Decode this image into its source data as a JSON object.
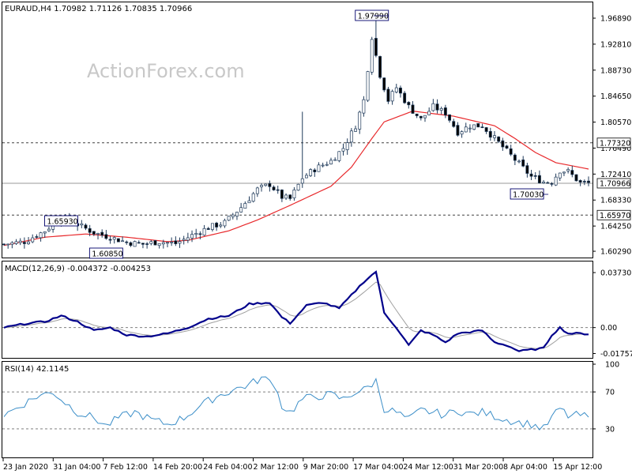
{
  "chart_data": [
    {
      "type": "candlestick",
      "header": "EURAUD,H4 1.70982 1.71126 1.70835 1.70966",
      "watermark": "ActionForex.com",
      "y_range": [
        1.598,
        1.99
      ],
      "y_ticks": [
        "1.96890",
        "1.92810",
        "1.88730",
        "1.84650",
        "1.80570",
        "1.76490",
        "1.72410",
        "1.68330",
        "1.64250",
        "1.60290"
      ],
      "levels": [
        {
          "value": 1.7732,
          "label": "1.77320",
          "style": "dashed"
        },
        {
          "value": 1.70966,
          "label": "1.70966",
          "style": "solid-current"
        },
        {
          "value": 1.6597,
          "label": "1.65970",
          "style": "dashed"
        }
      ],
      "annotations": [
        {
          "label": "1.65930",
          "bar": 14
        },
        {
          "label": "1.60850",
          "bar": 25
        },
        {
          "label": "1.97990",
          "bar": 90
        },
        {
          "label": "1.70030",
          "bar": 132
        }
      ],
      "close_anchors": [
        [
          0,
          1.614
        ],
        [
          5,
          1.618
        ],
        [
          10,
          1.635
        ],
        [
          14,
          1.656
        ],
        [
          18,
          1.645
        ],
        [
          22,
          1.632
        ],
        [
          26,
          1.625
        ],
        [
          30,
          1.617
        ],
        [
          34,
          1.614
        ],
        [
          38,
          1.618
        ],
        [
          42,
          1.615
        ],
        [
          46,
          1.628
        ],
        [
          50,
          1.64
        ],
        [
          54,
          1.648
        ],
        [
          58,
          1.672
        ],
        [
          62,
          1.7
        ],
        [
          65,
          1.708
        ],
        [
          68,
          1.688
        ],
        [
          70,
          1.685
        ],
        [
          73,
          1.718
        ],
        [
          76,
          1.732
        ],
        [
          80,
          1.745
        ],
        [
          83,
          1.765
        ],
        [
          86,
          1.8
        ],
        [
          88,
          1.84
        ],
        [
          90,
          1.94
        ],
        [
          92,
          1.88
        ],
        [
          94,
          1.84
        ],
        [
          96,
          1.86
        ],
        [
          99,
          1.83
        ],
        [
          102,
          1.81
        ],
        [
          105,
          1.83
        ],
        [
          108,
          1.82
        ],
        [
          111,
          1.79
        ],
        [
          114,
          1.8
        ],
        [
          117,
          1.8
        ],
        [
          120,
          1.78
        ],
        [
          123,
          1.76
        ],
        [
          126,
          1.74
        ],
        [
          129,
          1.72
        ],
        [
          132,
          1.712
        ],
        [
          134,
          1.712
        ],
        [
          136,
          1.73
        ],
        [
          138,
          1.728
        ],
        [
          141,
          1.71
        ],
        [
          143,
          1.71
        ]
      ],
      "ma_anchors": [
        [
          0,
          1.612
        ],
        [
          10,
          1.625
        ],
        [
          20,
          1.63
        ],
        [
          30,
          1.625
        ],
        [
          40,
          1.618
        ],
        [
          45,
          1.62
        ],
        [
          55,
          1.635
        ],
        [
          62,
          1.652
        ],
        [
          70,
          1.675
        ],
        [
          80,
          1.705
        ],
        [
          85,
          1.735
        ],
        [
          90,
          1.78
        ],
        [
          93,
          1.806
        ],
        [
          100,
          1.823
        ],
        [
          110,
          1.815
        ],
        [
          120,
          1.8
        ],
        [
          125,
          1.78
        ],
        [
          130,
          1.758
        ],
        [
          135,
          1.742
        ],
        [
          143,
          1.732
        ]
      ],
      "spikes": [
        {
          "bar": 73,
          "high": 1.822
        },
        {
          "bar": 91,
          "high": 1.9799
        }
      ]
    },
    {
      "type": "line",
      "header": "MACD(12,26,9) -0.004372 -0.004253",
      "y_range": [
        -0.02,
        0.04
      ],
      "y_ticks": [
        "0.037301",
        "0.00",
        "-0.017577"
      ],
      "series": [
        {
          "name": "MACD",
          "anchors": [
            [
              0,
              0.0
            ],
            [
              6,
              0.003
            ],
            [
              10,
              0.004
            ],
            [
              14,
              0.008
            ],
            [
              18,
              0.004
            ],
            [
              22,
              -0.002
            ],
            [
              26,
              0.0
            ],
            [
              30,
              -0.005
            ],
            [
              35,
              -0.006
            ],
            [
              40,
              -0.004
            ],
            [
              45,
              0.0
            ],
            [
              50,
              0.006
            ],
            [
              55,
              0.008
            ],
            [
              60,
              0.016
            ],
            [
              65,
              0.017
            ],
            [
              68,
              0.007
            ],
            [
              70,
              0.003
            ],
            [
              74,
              0.015
            ],
            [
              78,
              0.017
            ],
            [
              82,
              0.013
            ],
            [
              86,
              0.025
            ],
            [
              88,
              0.031
            ],
            [
              91,
              0.038
            ],
            [
              93,
              0.01
            ],
            [
              96,
              0.0
            ],
            [
              99,
              -0.012
            ],
            [
              102,
              -0.002
            ],
            [
              105,
              -0.005
            ],
            [
              108,
              -0.01
            ],
            [
              111,
              -0.004
            ],
            [
              114,
              -0.003
            ],
            [
              117,
              -0.002
            ],
            [
              120,
              -0.01
            ],
            [
              123,
              -0.012
            ],
            [
              126,
              -0.016
            ],
            [
              129,
              -0.015
            ],
            [
              132,
              -0.014
            ],
            [
              134,
              -0.005
            ],
            [
              136,
              0.0
            ],
            [
              138,
              -0.004
            ],
            [
              141,
              -0.004
            ],
            [
              143,
              -0.0044
            ]
          ]
        }
      ],
      "levels": [
        {
          "value": 0.0,
          "label": "0.00"
        }
      ]
    },
    {
      "type": "line",
      "header": "RSI(14) 42.1145",
      "y_range": [
        0,
        100
      ],
      "y_ticks": [
        "100",
        "70",
        "30"
      ],
      "series": [
        {
          "name": "RSI(14)",
          "anchors": [
            [
              0,
              45
            ],
            [
              4,
              55
            ],
            [
              8,
              65
            ],
            [
              12,
              70
            ],
            [
              14,
              62
            ],
            [
              18,
              48
            ],
            [
              22,
              42
            ],
            [
              25,
              33
            ],
            [
              28,
              42
            ],
            [
              32,
              48
            ],
            [
              36,
              40
            ],
            [
              40,
              35
            ],
            [
              44,
              42
            ],
            [
              48,
              55
            ],
            [
              52,
              65
            ],
            [
              56,
              72
            ],
            [
              60,
              78
            ],
            [
              63,
              85
            ],
            [
              66,
              80
            ],
            [
              68,
              55
            ],
            [
              70,
              48
            ],
            [
              73,
              62
            ],
            [
              76,
              65
            ],
            [
              80,
              67
            ],
            [
              83,
              62
            ],
            [
              86,
              70
            ],
            [
              88,
              72
            ],
            [
              91,
              82
            ],
            [
              93,
              52
            ],
            [
              96,
              48
            ],
            [
              99,
              40
            ],
            [
              102,
              50
            ],
            [
              105,
              48
            ],
            [
              108,
              45
            ],
            [
              111,
              50
            ],
            [
              114,
              46
            ],
            [
              117,
              48
            ],
            [
              120,
              44
            ],
            [
              123,
              40
            ],
            [
              126,
              37
            ],
            [
              129,
              35
            ],
            [
              132,
              30
            ],
            [
              134,
              42
            ],
            [
              136,
              52
            ],
            [
              138,
              44
            ],
            [
              141,
              45
            ],
            [
              143,
              42
            ]
          ]
        }
      ],
      "levels": [
        {
          "value": 70,
          "label": "70"
        },
        {
          "value": 30,
          "label": "30"
        }
      ]
    }
  ],
  "x_axis_labels": [
    "23 Jan 2020",
    "31 Jan 04:00",
    "7 Feb 12:00",
    "14 Feb 20:00",
    "24 Feb 04:00",
    "2 Mar 12:00",
    "9 Mar 20:00",
    "17 Mar 04:00",
    "24 Mar 12:00",
    "31 Mar 20:00",
    "8 Apr 04:00",
    "15 Apr 12:00"
  ],
  "colors": {
    "up_candle": "#ffffff",
    "down_candle": "#000000",
    "candle_outline": "#1f3a5a",
    "moving_average": "#e8282b",
    "macd_line": "#00008b",
    "signal_line": "#a0a0a0",
    "rsi_line": "#3b8ec8",
    "levels": "#707070",
    "label_box_border": "#00006b"
  }
}
